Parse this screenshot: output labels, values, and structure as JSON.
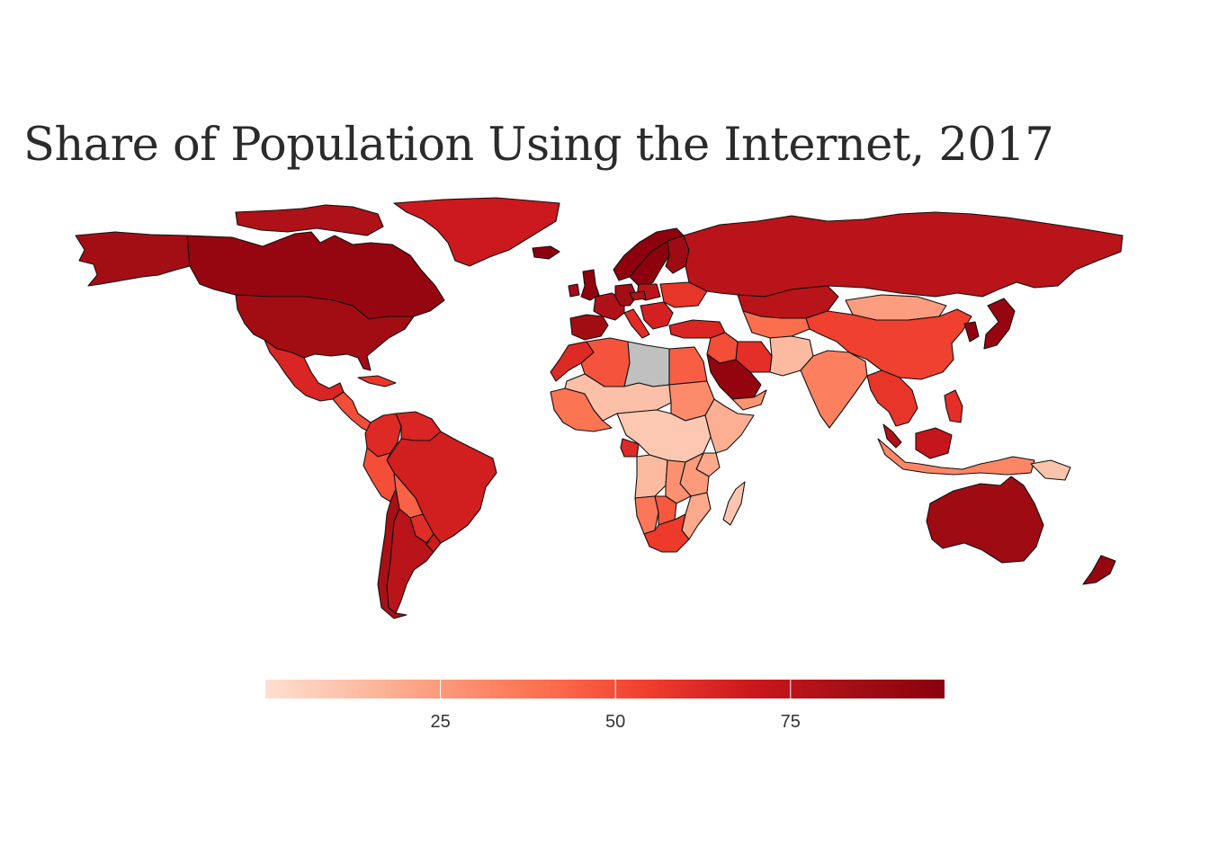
{
  "title": "Share of Population Using the Internet, 2017",
  "chart_data": {
    "type": "choropleth",
    "title": "Share of Population Using the Internet, 2017",
    "colorscale": [
      "#fee0d2",
      "#fcbba1",
      "#fc9272",
      "#fb6a4a",
      "#ef3b2c",
      "#cb181d",
      "#a50f15",
      "#8b000d"
    ],
    "color_range": [
      0,
      97
    ],
    "no_data_color": "#c0c0c0",
    "colorbar_ticks": [
      25,
      50,
      75
    ],
    "colorbar_orientation": "horizontal",
    "regions": [
      {
        "name": "Canada",
        "value": 91
      },
      {
        "name": "Alaska (USA)",
        "value": 84
      },
      {
        "name": "United States",
        "value": 85
      },
      {
        "name": "Mexico",
        "value": 64
      },
      {
        "name": "Central America",
        "value": 50
      },
      {
        "name": "Cuba",
        "value": 57
      },
      {
        "name": "Greenland",
        "value": 69
      },
      {
        "name": "Colombia",
        "value": 62
      },
      {
        "name": "Venezuela",
        "value": 64
      },
      {
        "name": "Peru",
        "value": 50
      },
      {
        "name": "Brazil",
        "value": 67
      },
      {
        "name": "Bolivia",
        "value": 44
      },
      {
        "name": "Paraguay",
        "value": 61
      },
      {
        "name": "Chile",
        "value": 82
      },
      {
        "name": "Argentina",
        "value": 76
      },
      {
        "name": "Uruguay",
        "value": 68
      },
      {
        "name": "Iceland",
        "value": 98
      },
      {
        "name": "United Kingdom",
        "value": 95
      },
      {
        "name": "Ireland",
        "value": 84
      },
      {
        "name": "Norway",
        "value": 96
      },
      {
        "name": "Sweden",
        "value": 96
      },
      {
        "name": "Finland",
        "value": 87
      },
      {
        "name": "Spain",
        "value": 85
      },
      {
        "name": "France",
        "value": 80
      },
      {
        "name": "Germany",
        "value": 84
      },
      {
        "name": "Poland",
        "value": 76
      },
      {
        "name": "Italy",
        "value": 61
      },
      {
        "name": "Balkans",
        "value": 66
      },
      {
        "name": "Ukraine",
        "value": 58
      },
      {
        "name": "Turkey",
        "value": 64
      },
      {
        "name": "Russia",
        "value": 76
      },
      {
        "name": "Kazakhstan",
        "value": 76
      },
      {
        "name": "Central Asia",
        "value": 40
      },
      {
        "name": "Mongolia",
        "value": 24
      },
      {
        "name": "China",
        "value": 54
      },
      {
        "name": "Korea",
        "value": 95
      },
      {
        "name": "Japan",
        "value": 91
      },
      {
        "name": "Iran",
        "value": 60
      },
      {
        "name": "Afghanistan & Pakistan",
        "value": 14
      },
      {
        "name": "India",
        "value": 34
      },
      {
        "name": "Saudi Arabia",
        "value": 93
      },
      {
        "name": "Iraq & Syria",
        "value": 50
      },
      {
        "name": "Yemen & Oman",
        "value": 27
      },
      {
        "name": "Mainland Southeast Asia",
        "value": 58
      },
      {
        "name": "Malaysia",
        "value": 80
      },
      {
        "name": "Indonesia",
        "value": 32
      },
      {
        "name": "Philippines",
        "value": 60
      },
      {
        "name": "Borneo",
        "value": 72
      },
      {
        "name": "Papua New Guinea",
        "value": 11
      },
      {
        "name": "Australia",
        "value": 87
      },
      {
        "name": "New Zealand",
        "value": 91
      },
      {
        "name": "Morocco",
        "value": 62
      },
      {
        "name": "Algeria",
        "value": 48
      },
      {
        "name": "Libya",
        "value": null
      },
      {
        "name": "Egypt",
        "value": 45
      },
      {
        "name": "Sahel",
        "value": 12
      },
      {
        "name": "West Africa coast",
        "value": 38
      },
      {
        "name": "Sudan",
        "value": 30
      },
      {
        "name": "Horn of Africa",
        "value": 18
      },
      {
        "name": "Central Africa",
        "value": 9
      },
      {
        "name": "Gabon",
        "value": 62
      },
      {
        "name": "Kenya",
        "value": 20
      },
      {
        "name": "Angola",
        "value": 14
      },
      {
        "name": "Zambia",
        "value": 28
      },
      {
        "name": "Tanzania",
        "value": 25
      },
      {
        "name": "Mozambique",
        "value": 20
      },
      {
        "name": "Namibia",
        "value": 37
      },
      {
        "name": "Botswana",
        "value": 47
      },
      {
        "name": "South Africa",
        "value": 56
      },
      {
        "name": "Madagascar",
        "value": 10
      }
    ]
  }
}
